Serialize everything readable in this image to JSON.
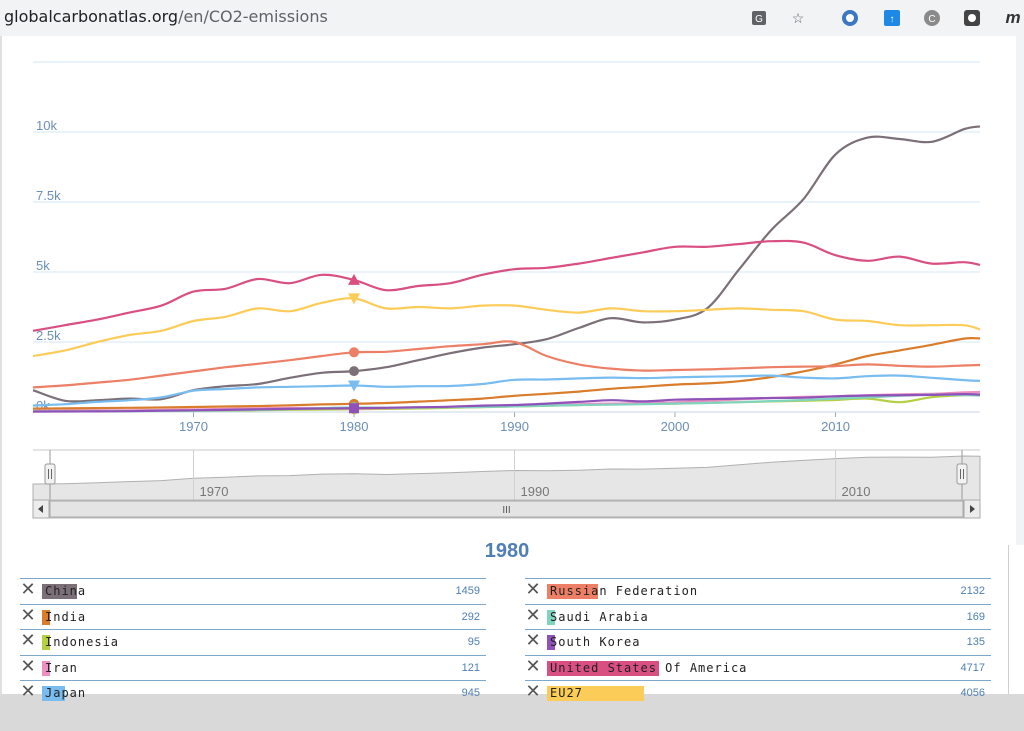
{
  "browser": {
    "url_host": "globalcarbonatlas.org",
    "url_path": "/en/CO2-emissions",
    "icons": [
      "translate-icon",
      "star-icon",
      "extension-icon",
      "extension-icon",
      "extension-icon",
      "extension-icon",
      "profile-icon"
    ]
  },
  "selected_year": "1980",
  "chart_data": {
    "type": "line",
    "x": [
      1960,
      1962,
      1964,
      1966,
      1968,
      1970,
      1972,
      1974,
      1976,
      1978,
      1980,
      1982,
      1984,
      1986,
      1988,
      1990,
      1992,
      1994,
      1996,
      1998,
      2000,
      2002,
      2004,
      2006,
      2008,
      2010,
      2012,
      2014,
      2016,
      2018,
      2019
    ],
    "ylim": [
      0,
      12500
    ],
    "yticks": [
      0,
      2500,
      5000,
      7500,
      10000
    ],
    "ytick_labels": [
      "0k",
      "2.5k",
      "5k",
      "7.5k",
      "10k"
    ],
    "xticks": [
      1970,
      1980,
      1990,
      2000,
      2010
    ],
    "xlim": [
      1960,
      2019
    ],
    "series": [
      {
        "name": "China",
        "color": "#7b6f78",
        "values": [
          780,
          400,
          420,
          480,
          460,
          780,
          920,
          1000,
          1220,
          1400,
          1459,
          1600,
          1850,
          2100,
          2300,
          2420,
          2600,
          3000,
          3350,
          3200,
          3300,
          3700,
          5100,
          6500,
          7600,
          9200,
          9800,
          9750,
          9650,
          10100,
          10200
        ]
      },
      {
        "name": "India",
        "color": "#d97c2b",
        "values": [
          120,
          130,
          140,
          150,
          160,
          180,
          195,
          210,
          240,
          270,
          292,
          320,
          370,
          420,
          480,
          580,
          650,
          730,
          830,
          900,
          980,
          1020,
          1100,
          1250,
          1450,
          1700,
          2000,
          2200,
          2400,
          2620,
          2630
        ]
      },
      {
        "name": "Indonesia",
        "color": "#b5cf45",
        "values": [
          25,
          28,
          30,
          35,
          40,
          45,
          55,
          65,
          80,
          88,
          95,
          110,
          130,
          150,
          175,
          200,
          220,
          250,
          280,
          290,
          300,
          330,
          350,
          380,
          400,
          430,
          480,
          350,
          530,
          600,
          620
        ]
      },
      {
        "name": "Iran",
        "color": "#ec8fc1",
        "values": [
          40,
          45,
          55,
          60,
          70,
          90,
          110,
          130,
          150,
          140,
          121,
          140,
          160,
          180,
          200,
          220,
          250,
          280,
          300,
          320,
          350,
          400,
          450,
          500,
          540,
          560,
          600,
          630,
          650,
          700,
          710
        ]
      },
      {
        "name": "Japan",
        "color": "#78bcf0",
        "values": [
          230,
          280,
          360,
          420,
          520,
          760,
          820,
          880,
          900,
          920,
          945,
          900,
          920,
          930,
          1000,
          1150,
          1160,
          1200,
          1230,
          1210,
          1240,
          1260,
          1280,
          1300,
          1230,
          1200,
          1280,
          1300,
          1220,
          1140,
          1110
        ]
      },
      {
        "name": "Russian Federation",
        "color": "#ec7f65",
        "values": [
          880,
          950,
          1050,
          1150,
          1300,
          1450,
          1600,
          1720,
          1850,
          2000,
          2132,
          2150,
          2250,
          2350,
          2420,
          2500,
          2000,
          1700,
          1550,
          1480,
          1500,
          1520,
          1560,
          1600,
          1620,
          1640,
          1700,
          1650,
          1620,
          1660,
          1680
        ]
      },
      {
        "name": "Saudi Arabia",
        "color": "#7fd4c0",
        "values": [
          20,
          22,
          25,
          30,
          40,
          50,
          60,
          80,
          100,
          140,
          169,
          150,
          160,
          170,
          180,
          200,
          230,
          250,
          260,
          280,
          300,
          320,
          350,
          390,
          430,
          480,
          520,
          580,
          620,
          600,
          590
        ]
      },
      {
        "name": "South Korea",
        "color": "#8e52b8",
        "values": [
          15,
          18,
          22,
          30,
          45,
          60,
          75,
          95,
          110,
          125,
          135,
          150,
          170,
          190,
          230,
          250,
          300,
          360,
          420,
          380,
          440,
          460,
          480,
          500,
          510,
          560,
          590,
          600,
          610,
          640,
          620
        ]
      },
      {
        "name": "United States Of America",
        "color": "#d94f81",
        "values": [
          2900,
          3100,
          3300,
          3550,
          3800,
          4300,
          4400,
          4750,
          4600,
          4900,
          4717,
          4350,
          4500,
          4600,
          4900,
          5100,
          5150,
          5300,
          5500,
          5700,
          5900,
          5900,
          6000,
          6100,
          6050,
          5600,
          5400,
          5550,
          5300,
          5350,
          5250
        ]
      },
      {
        "name": "EU27",
        "color": "#fbcc57",
        "values": [
          2000,
          2200,
          2500,
          2750,
          2900,
          3250,
          3400,
          3700,
          3600,
          3900,
          4056,
          3700,
          3750,
          3700,
          3800,
          3800,
          3650,
          3550,
          3700,
          3600,
          3600,
          3650,
          3700,
          3650,
          3600,
          3300,
          3250,
          3100,
          3100,
          3100,
          2950
        ]
      }
    ],
    "navigator_ticks": [
      "1970",
      "1990",
      "2010"
    ],
    "scrollbar_grip": "III"
  },
  "legend": {
    "left": [
      {
        "name": "China",
        "value": "1459",
        "color": "#7b6f78"
      },
      {
        "name": "India",
        "value": "292",
        "color": "#d97c2b"
      },
      {
        "name": "Indonesia",
        "value": "95",
        "color": "#b5cf45"
      },
      {
        "name": "Iran",
        "value": "121",
        "color": "#ec8fc1"
      },
      {
        "name": "Japan",
        "value": "945",
        "color": "#78bcf0"
      }
    ],
    "right": [
      {
        "name": "Russian Federation",
        "value": "2132",
        "color": "#ec7f65"
      },
      {
        "name": "Saudi Arabia",
        "value": "169",
        "color": "#7fd4c0"
      },
      {
        "name": "South Korea",
        "value": "135",
        "color": "#8e52b8"
      },
      {
        "name": "United States Of America",
        "value": "4717",
        "color": "#d94f81"
      },
      {
        "name": "EU27",
        "value": "4056",
        "color": "#fbcc57"
      }
    ],
    "max_value": 6300
  }
}
